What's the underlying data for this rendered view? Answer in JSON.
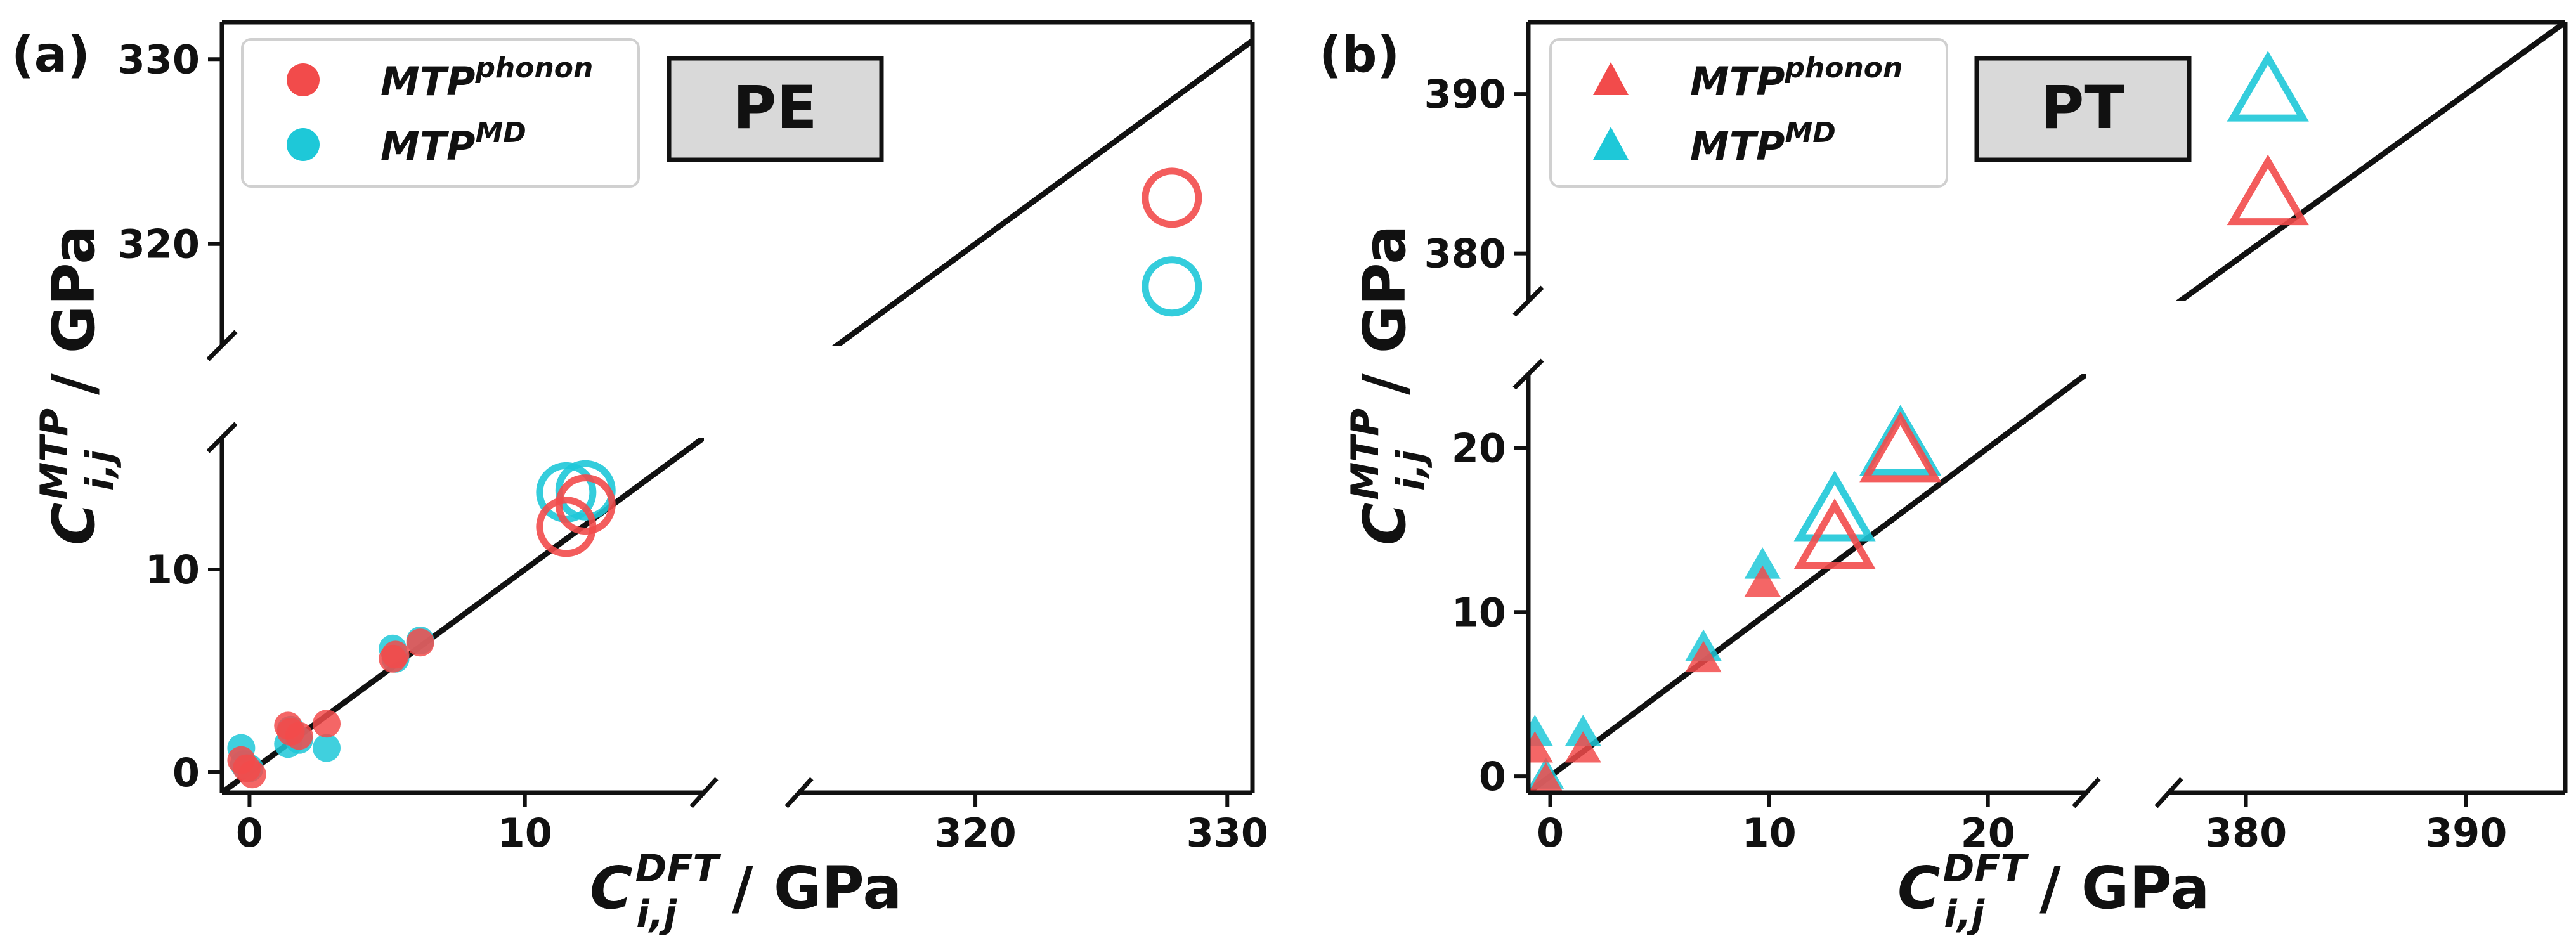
{
  "figure": {
    "panel_a_label": "(a)",
    "panel_b_label": "(b)"
  },
  "chart_data": [
    {
      "type": "scatter",
      "panel": "(a)",
      "material": "PE",
      "xlabel": {
        "base": "C",
        "sup": "DFT",
        "sub": "i,j",
        "unit": " / GPa"
      },
      "ylabel": {
        "base": "C",
        "sup": "MTP",
        "sub": "i,j",
        "unit": " / GPa"
      },
      "x_broken_ranges": [
        [
          -1,
          16.5
        ],
        [
          313,
          331
        ]
      ],
      "y_broken_ranges": [
        [
          -1,
          16.5
        ],
        [
          314.5,
          332
        ]
      ],
      "x_ticks": [
        [
          0,
          10
        ],
        [
          320,
          330
        ]
      ],
      "y_ticks": [
        [
          0,
          10
        ],
        [
          320,
          330
        ]
      ],
      "legend": [
        {
          "label_base": "MTP",
          "label_sup": "phonon",
          "color": "#f24b4b"
        },
        {
          "label_base": "MTP",
          "label_sup": "MD",
          "color": "#1ec8d8"
        }
      ],
      "legend_position": "upper-left",
      "series": [
        {
          "name": "MTP^MD",
          "color": "#1ec8d8",
          "points": [
            [
              -0.3,
              1.2
            ],
            [
              -0.2,
              0.4
            ],
            [
              0.0,
              0.2
            ],
            [
              1.4,
              1.4
            ],
            [
              1.5,
              2.1
            ],
            [
              1.8,
              1.6
            ],
            [
              2.8,
              1.2
            ],
            [
              5.2,
              6.1
            ],
            [
              5.3,
              5.6
            ],
            [
              6.2,
              6.5
            ]
          ],
          "big_points": [
            [
              11.5,
              13.8
            ],
            [
              12.2,
              13.9
            ],
            [
              327.8,
              317.7
            ]
          ]
        },
        {
          "name": "MTP^phonon",
          "color": "#f24b4b",
          "points": [
            [
              -0.3,
              0.6
            ],
            [
              -0.1,
              0.2
            ],
            [
              0.1,
              -0.1
            ],
            [
              1.4,
              2.3
            ],
            [
              1.5,
              2.0
            ],
            [
              1.8,
              1.8
            ],
            [
              2.8,
              2.4
            ],
            [
              5.2,
              5.6
            ],
            [
              5.3,
              5.8
            ],
            [
              6.2,
              6.4
            ]
          ],
          "big_points": [
            [
              11.5,
              12.1
            ],
            [
              12.2,
              13.2
            ],
            [
              327.8,
              322.5
            ]
          ]
        }
      ]
    },
    {
      "type": "scatter",
      "panel": "(b)",
      "material": "PT",
      "xlabel": {
        "base": "C",
        "sup": "DFT",
        "sub": "i,j",
        "unit": " / GPa"
      },
      "ylabel": {
        "base": "C",
        "sup": "MTP",
        "sub": "i,j",
        "unit": " / GPa"
      },
      "x_broken_ranges": [
        [
          -1,
          24.5
        ],
        [
          376.5,
          394.5
        ]
      ],
      "y_broken_ranges": [
        [
          -1,
          24.5
        ],
        [
          377,
          394.5
        ]
      ],
      "x_ticks": [
        [
          0,
          10,
          20
        ],
        [
          380,
          390
        ]
      ],
      "y_ticks": [
        [
          0,
          10,
          20
        ],
        [
          380,
          390
        ]
      ],
      "legend": [
        {
          "label_base": "MTP",
          "label_sup": "phonon",
          "color": "#f24b4b"
        },
        {
          "label_base": "MTP",
          "label_sup": "MD",
          "color": "#1ec8d8"
        }
      ],
      "legend_position": "upper-left",
      "series": [
        {
          "name": "MTP^MD",
          "color": "#1ec8d8",
          "points": [
            [
              -0.7,
              2.6
            ],
            [
              -0.2,
              0.0
            ],
            [
              1.5,
              2.6
            ],
            [
              7.0,
              7.8
            ],
            [
              9.7,
              12.8
            ]
          ],
          "big_points": [
            [
              13.0,
              16.0
            ],
            [
              16.0,
              20.0
            ],
            [
              381.0,
              390.0
            ]
          ]
        },
        {
          "name": "MTP^phonon",
          "color": "#f24b4b",
          "points": [
            [
              -0.7,
              1.6
            ],
            [
              -0.2,
              -0.3
            ],
            [
              1.5,
              1.6
            ],
            [
              7.0,
              7.1
            ],
            [
              9.7,
              11.7
            ]
          ],
          "big_points": [
            [
              13.0,
              14.3
            ],
            [
              16.0,
              19.6
            ],
            [
              381.0,
              383.5
            ]
          ]
        }
      ]
    }
  ]
}
